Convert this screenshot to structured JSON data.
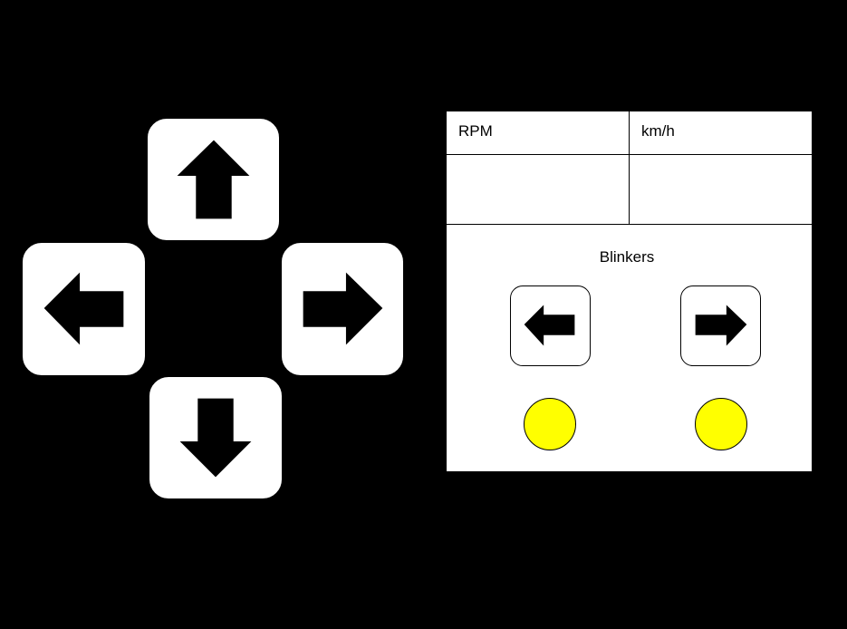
{
  "controls": {
    "up": {
      "icon": "arrow-up-icon"
    },
    "left": {
      "icon": "arrow-left-icon"
    },
    "right": {
      "icon": "arrow-right-icon"
    },
    "down": {
      "icon": "arrow-down-icon"
    }
  },
  "dashboard": {
    "rpm_label": "RPM",
    "speed_label": "km/h",
    "rpm_value": "",
    "speed_value": "",
    "blinkers_title": "Blinkers",
    "blinker_left_icon": "arrow-left-icon",
    "blinker_right_icon": "arrow-right-icon"
  },
  "colors": {
    "background": "#000000",
    "panel": "#ffffff",
    "lamp": "#ffff00"
  }
}
